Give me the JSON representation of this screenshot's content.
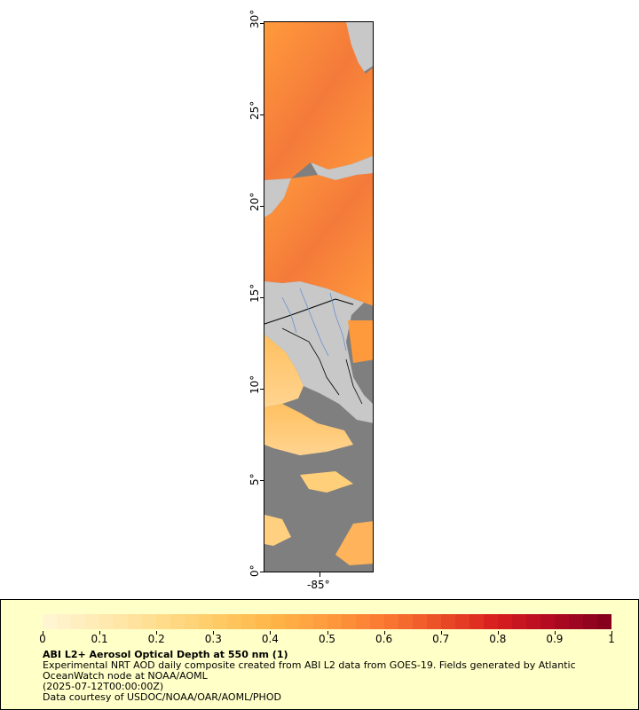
{
  "map": {
    "lat_ticks": [
      "0°",
      "5°",
      "10°",
      "15°",
      "20°",
      "25°",
      "30°"
    ],
    "lon_ticks": [
      "-85°"
    ],
    "colors": {
      "land": "#c8c8c8",
      "no_data": "#7f7f7f",
      "border": "#000000",
      "river": "#6a8fcf"
    }
  },
  "legend": {
    "colorbar_labels": [
      "0",
      "0.1",
      "0.2",
      "0.3",
      "0.4",
      "0.5",
      "0.6",
      "0.7",
      "0.8",
      "0.9",
      "1"
    ],
    "colorbar_colors": [
      "#fff5d0",
      "#ffe9b0",
      "#ffdc8c",
      "#ffcc66",
      "#ffb648",
      "#ff9a3c",
      "#fa7a32",
      "#ec5028",
      "#d8201e",
      "#b40a22",
      "#86001e"
    ],
    "title": "ABI L2+ Aerosol Optical Depth at 550 nm (1)",
    "line1": "Experimental NRT AOD daily composite created from ABI L2 data from GOES-19. Fields generated by Atlantic",
    "line2": "OceanWatch node at NOAA/AOML",
    "line3": "(2025-07-12T00:00:00Z)",
    "line4": "Data courtesy of USDOC/NOAA/OAR/AOML/PHOD"
  }
}
